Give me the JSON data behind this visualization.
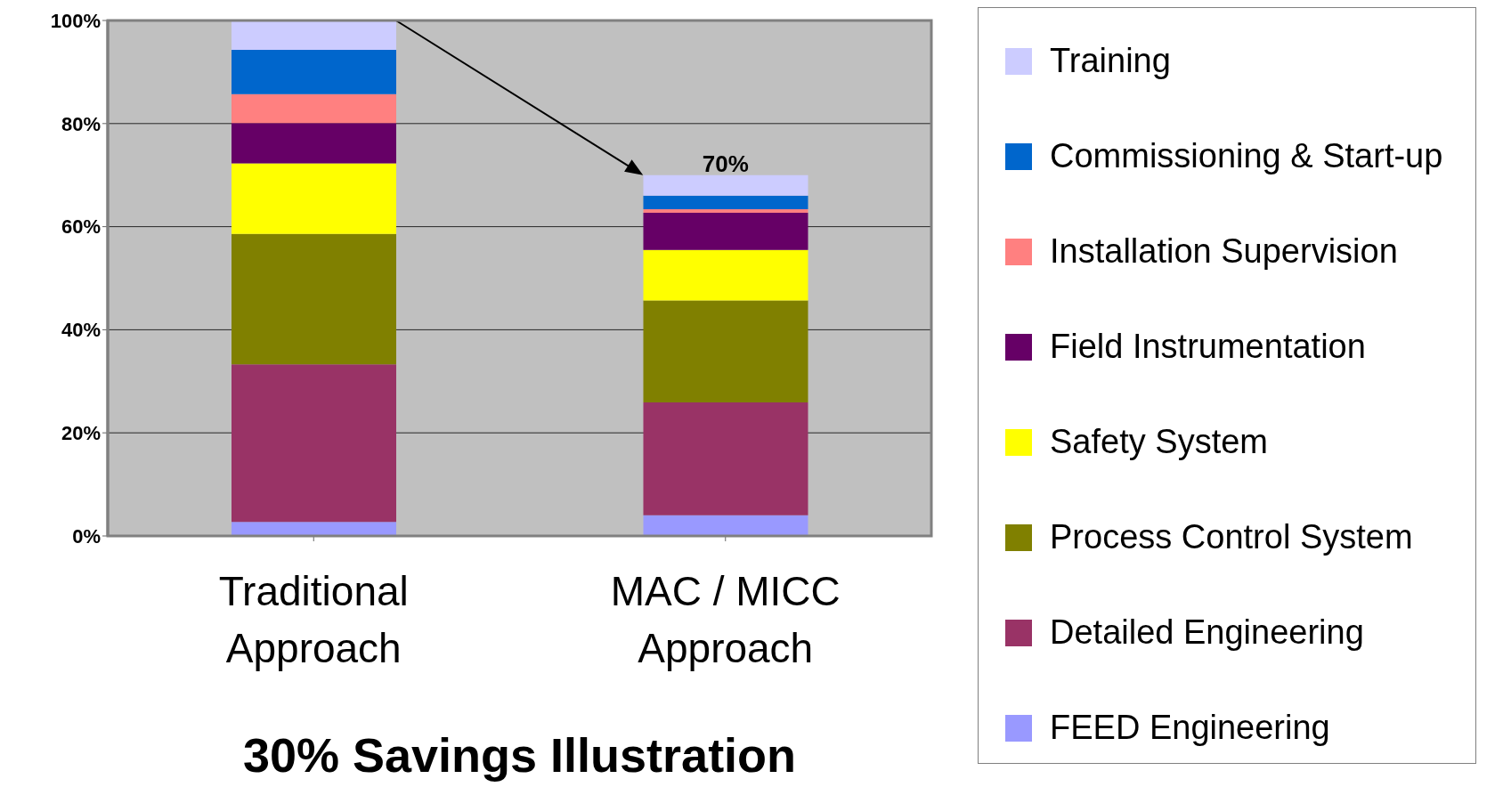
{
  "chart_data": {
    "type": "bar",
    "title": "30% Savings Illustration",
    "stacked": true,
    "categories": [
      "Traditional Approach",
      "MAC / MICC Approach"
    ],
    "series": [
      {
        "name": "FEED Engineering",
        "color": "#9999ff",
        "values": [
          2.7,
          4.0
        ]
      },
      {
        "name": "Detailed Engineering",
        "color": "#993366",
        "values": [
          30.6,
          21.9
        ]
      },
      {
        "name": "Process Control System",
        "color": "#808000",
        "values": [
          25.3,
          19.8
        ]
      },
      {
        "name": "Safety System",
        "color": "#ffff00",
        "values": [
          13.7,
          9.8
        ]
      },
      {
        "name": "Field Instrumentation",
        "color": "#660066",
        "values": [
          7.8,
          7.2
        ]
      },
      {
        "name": "Installation Supervision",
        "color": "#ff8080",
        "values": [
          5.6,
          0.7
        ]
      },
      {
        "name": "Commissioning & Start-up",
        "color": "#0066cc",
        "values": [
          8.6,
          2.6
        ]
      },
      {
        "name": "Training",
        "color": "#ccccff",
        "values": [
          5.7,
          4.0
        ]
      }
    ],
    "ylim": [
      0,
      100
    ],
    "yticks": [
      {
        "value": 0,
        "label": "0%"
      },
      {
        "value": 20,
        "label": "20%"
      },
      {
        "value": 40,
        "label": "40%"
      },
      {
        "value": 60,
        "label": "60%"
      },
      {
        "value": 80,
        "label": "80%"
      },
      {
        "value": 100,
        "label": "100%"
      }
    ],
    "grid": "y",
    "legend": "right",
    "annotations": [
      {
        "text": "70%",
        "x": "MAC / MICC Approach",
        "y": 70
      }
    ]
  }
}
